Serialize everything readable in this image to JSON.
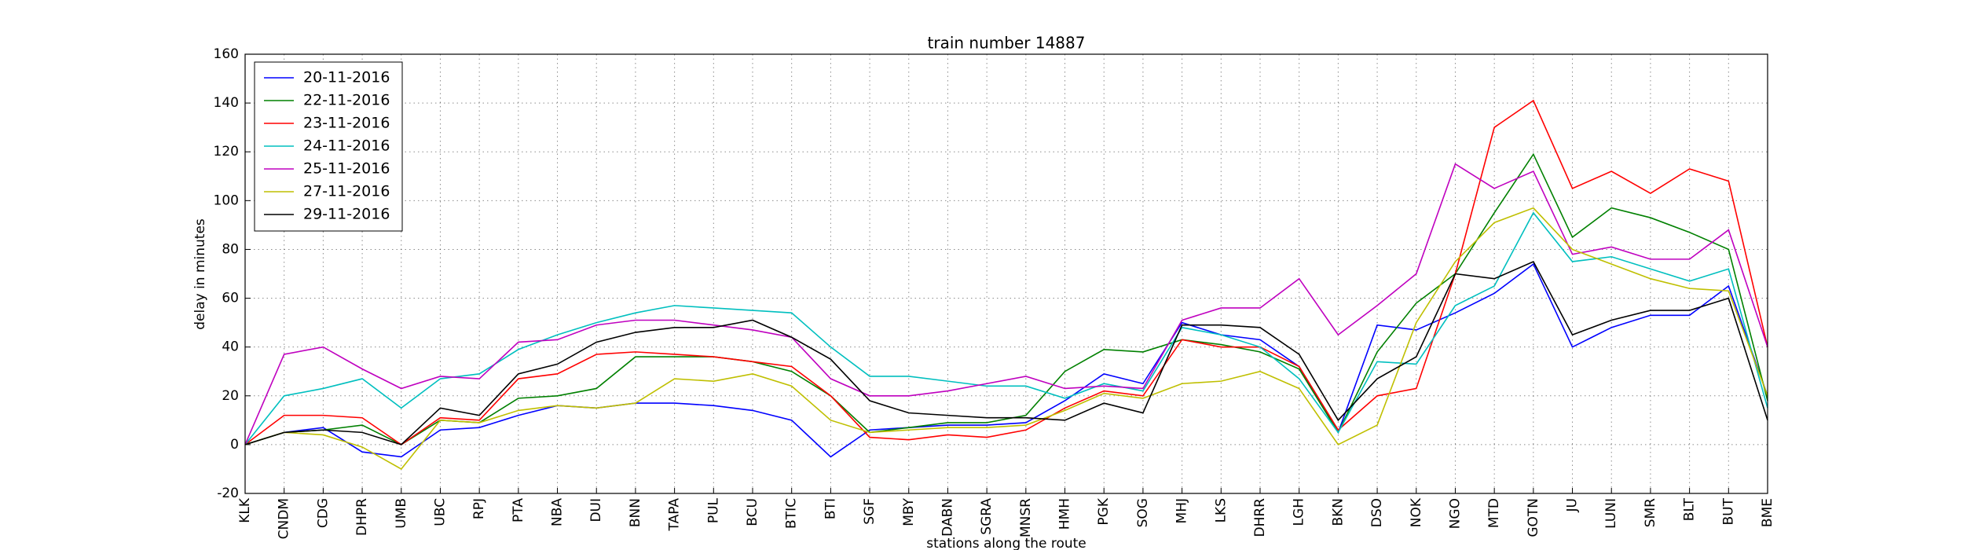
{
  "chart_data": {
    "type": "line",
    "title": "train number 14887",
    "x_label": "stations along the route",
    "y_label": "delay in minutes",
    "categories": [
      "KLK",
      "CNDM",
      "CDG",
      "DHPR",
      "UMB",
      "UBC",
      "RPJ",
      "PTA",
      "NBA",
      "DUI",
      "BNN",
      "TAPA",
      "PUL",
      "BCU",
      "BTIC",
      "BTI",
      "SGF",
      "MBY",
      "DABN",
      "SGRA",
      "MNSR",
      "HMH",
      "PGK",
      "SOG",
      "MHJ",
      "LKS",
      "DHRR",
      "LGH",
      "BKN",
      "DSO",
      "NOK",
      "NGO",
      "MTD",
      "GOTN",
      "JU",
      "LUNI",
      "SMR",
      "BLT",
      "BUT",
      "BME"
    ],
    "series": [
      {
        "name": "20-11-2016",
        "color": "#0000ff",
        "values": [
          0,
          5,
          7,
          -3,
          -5,
          6,
          7,
          12,
          16,
          15,
          17,
          17,
          16,
          14,
          10,
          -5,
          6,
          7,
          8,
          8,
          9,
          18,
          29,
          25,
          50,
          45,
          43,
          32,
          5,
          49,
          47,
          54,
          62,
          74,
          40,
          48,
          53,
          53,
          65,
          20
        ]
      },
      {
        "name": "22-11-2016",
        "color": "#008000",
        "values": [
          0,
          5,
          6,
          8,
          0,
          10,
          9,
          19,
          20,
          23,
          36,
          36,
          36,
          34,
          30,
          20,
          5,
          7,
          9,
          9,
          12,
          30,
          39,
          38,
          43,
          41,
          38,
          31,
          5,
          38,
          58,
          70,
          95,
          119,
          85,
          97,
          93,
          87,
          80,
          18
        ]
      },
      {
        "name": "23-11-2016",
        "color": "#ff0000",
        "values": [
          0,
          12,
          12,
          11,
          0,
          11,
          10,
          27,
          29,
          37,
          38,
          37,
          36,
          34,
          32,
          20,
          3,
          2,
          4,
          3,
          6,
          15,
          22,
          20,
          43,
          40,
          40,
          32,
          6,
          20,
          23,
          70,
          130,
          141,
          105,
          112,
          103,
          113,
          108,
          40
        ]
      },
      {
        "name": "24-11-2016",
        "color": "#00bfbf",
        "values": [
          0,
          20,
          23,
          27,
          15,
          27,
          29,
          39,
          45,
          50,
          54,
          57,
          56,
          55,
          54,
          40,
          28,
          28,
          26,
          24,
          24,
          19,
          25,
          22,
          48,
          45,
          40,
          27,
          5,
          34,
          33,
          57,
          65,
          95,
          75,
          77,
          72,
          67,
          72,
          15
        ]
      },
      {
        "name": "25-11-2016",
        "color": "#bf00bf",
        "values": [
          0,
          37,
          40,
          31,
          23,
          28,
          27,
          42,
          43,
          49,
          51,
          51,
          49,
          47,
          44,
          27,
          20,
          20,
          22,
          25,
          28,
          23,
          24,
          23,
          51,
          56,
          56,
          68,
          45,
          57,
          70,
          115,
          105,
          112,
          78,
          81,
          76,
          76,
          88,
          40
        ]
      },
      {
        "name": "27-11-2016",
        "color": "#bfbf00",
        "values": [
          0,
          5,
          4,
          -1,
          -10,
          10,
          9,
          14,
          16,
          15,
          17,
          27,
          26,
          29,
          24,
          10,
          5,
          6,
          7,
          7,
          8,
          14,
          21,
          19,
          25,
          26,
          30,
          23,
          0,
          8,
          50,
          75,
          91,
          97,
          80,
          74,
          68,
          64,
          63,
          20
        ]
      },
      {
        "name": "29-11-2016",
        "color": "#000000",
        "values": [
          0,
          5,
          6,
          5,
          0,
          15,
          12,
          29,
          33,
          42,
          46,
          48,
          48,
          51,
          44,
          35,
          18,
          13,
          12,
          11,
          11,
          10,
          17,
          13,
          49,
          49,
          48,
          37,
          10,
          27,
          36,
          70,
          68,
          75,
          45,
          51,
          55,
          55,
          60,
          10
        ]
      }
    ],
    "ylim": [
      -20,
      160
    ],
    "yticks": [
      -20,
      0,
      20,
      40,
      60,
      80,
      100,
      120,
      140,
      160
    ],
    "grid": true,
    "legend": "upper left"
  }
}
